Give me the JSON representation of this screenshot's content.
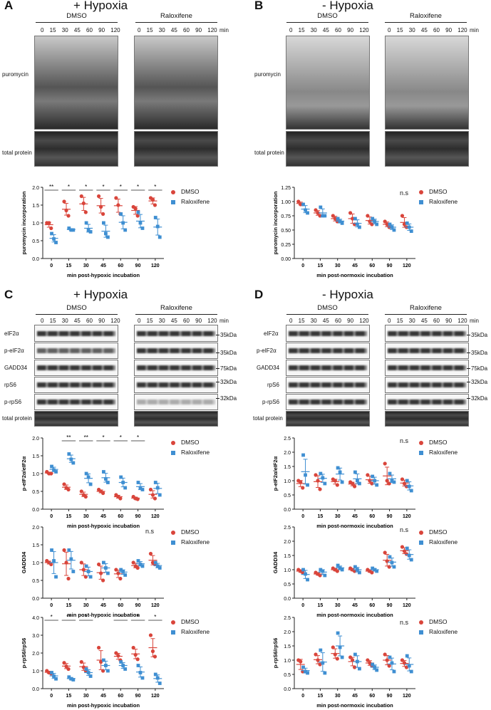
{
  "panels": {
    "A": {
      "letter": "A",
      "title": "+ Hypoxia"
    },
    "B": {
      "letter": "B",
      "title": "- Hypoxia"
    },
    "C": {
      "letter": "C",
      "title": "+ Hypoxia"
    },
    "D": {
      "letter": "D",
      "title": "- Hypoxia"
    }
  },
  "groups": {
    "dmso": "DMSO",
    "ralox": "Raloxifene"
  },
  "timepoints": "0 15 30 45 60 90 120",
  "min_label": "min",
  "blot_labels": {
    "puromycin": "puromycin",
    "total_protein": "total protein",
    "eif2a": "eIF2α",
    "peif2a": "p-eIF2α",
    "gadd34": "GADD34",
    "rps6": "rpS6",
    "prps6": "p-rpS6"
  },
  "kda": {
    "k35a": "35kDa",
    "k35b": "35kDa",
    "k75": "75kDa",
    "k32a": "32kDa",
    "k32b": "32kDa"
  },
  "legend": {
    "dmso": "DMSO",
    "ralox": "Raloxifene"
  },
  "ns": "n.s",
  "chart_data": [
    {
      "type": "scatter",
      "id": "A",
      "ylabel": "puromycin incorporation",
      "xlabel": "min post-hypoxic incubation",
      "categories": [
        "0",
        "15",
        "30",
        "45",
        "60",
        "90",
        "120"
      ],
      "ylim": [
        0,
        2.0
      ],
      "yticks": [
        "0.0",
        "0.5",
        "1.0",
        "1.5",
        "2.0"
      ],
      "yticks_num": [
        0,
        0.5,
        1.0,
        1.5,
        2.0
      ],
      "sig": [
        "**",
        "*",
        "*",
        "*",
        "*",
        "*",
        "*"
      ],
      "series": [
        {
          "name": "DMSO",
          "points": [
            [
              1.0,
              1.0,
              0.85
            ],
            [
              1.6,
              1.35,
              1.2
            ],
            [
              1.75,
              1.55,
              1.3
            ],
            [
              1.75,
              1.45,
              1.25
            ],
            [
              1.7,
              1.5,
              1.25
            ],
            [
              1.45,
              1.4,
              1.2
            ],
            [
              1.7,
              1.65,
              1.5
            ]
          ]
        },
        {
          "name": "Raloxifene",
          "points": [
            [
              0.7,
              0.55,
              0.45
            ],
            [
              0.85,
              0.8,
              0.8
            ],
            [
              1.0,
              0.8,
              0.75
            ],
            [
              1.0,
              0.7,
              0.6
            ],
            [
              1.25,
              1.0,
              0.8
            ],
            [
              1.3,
              1.0,
              0.85
            ],
            [
              1.15,
              0.9,
              0.6
            ]
          ]
        }
      ]
    },
    {
      "type": "scatter",
      "id": "B",
      "ylabel": "puromycin incorporation",
      "xlabel": "min post-normoxic incubation",
      "categories": [
        "0",
        "15",
        "30",
        "45",
        "60",
        "90",
        "120"
      ],
      "ylim": [
        0,
        1.25
      ],
      "yticks": [
        "0.00",
        "0.25",
        "0.50",
        "0.75",
        "1.00",
        "1.25"
      ],
      "yticks_num": [
        0,
        0.25,
        0.5,
        0.75,
        1.0,
        1.25
      ],
      "sig": [],
      "series": [
        {
          "name": "DMSO",
          "points": [
            [
              1.0,
              0.95,
              0.95
            ],
            [
              0.85,
              0.8,
              0.75
            ],
            [
              0.75,
              0.7,
              0.65
            ],
            [
              0.8,
              0.7,
              0.6
            ],
            [
              0.75,
              0.65,
              0.6
            ],
            [
              0.65,
              0.6,
              0.55
            ],
            [
              0.75,
              0.6,
              0.55
            ]
          ]
        },
        {
          "name": "Raloxifene",
          "points": [
            [
              0.95,
              0.85,
              0.8
            ],
            [
              0.9,
              0.75,
              0.75
            ],
            [
              0.7,
              0.65,
              0.62
            ],
            [
              0.7,
              0.6,
              0.55
            ],
            [
              0.7,
              0.65,
              0.6
            ],
            [
              0.6,
              0.55,
              0.5
            ],
            [
              0.62,
              0.55,
              0.48
            ]
          ]
        }
      ]
    },
    {
      "type": "scatter",
      "id": "C1",
      "ylabel": "p-eIF2α/eIF2α",
      "xlabel": "min post-hypoxic incubation",
      "categories": [
        "0",
        "15",
        "30",
        "45",
        "60",
        "90",
        "120"
      ],
      "ylim": [
        0,
        2.0
      ],
      "yticks": [
        "0.0",
        "0.5",
        "1.0",
        "1.5",
        "2.0"
      ],
      "yticks_num": [
        0,
        0.5,
        1.0,
        1.5,
        2.0
      ],
      "sig": [
        "",
        "**",
        "**",
        "*",
        "*",
        "*",
        ""
      ],
      "series": [
        {
          "name": "DMSO",
          "points": [
            [
              1.05,
              1.0,
              1.0
            ],
            [
              0.7,
              0.6,
              0.55
            ],
            [
              0.5,
              0.4,
              0.35
            ],
            [
              0.55,
              0.5,
              0.45
            ],
            [
              0.4,
              0.35,
              0.3
            ],
            [
              0.35,
              0.3,
              0.28
            ],
            [
              0.55,
              0.4,
              0.3
            ]
          ]
        },
        {
          "name": "Raloxifene",
          "points": [
            [
              1.2,
              1.1,
              1.05
            ],
            [
              1.55,
              1.4,
              1.3
            ],
            [
              1.0,
              0.9,
              0.7
            ],
            [
              1.05,
              0.85,
              0.75
            ],
            [
              0.9,
              0.75,
              0.6
            ],
            [
              0.75,
              0.6,
              0.55
            ],
            [
              0.75,
              0.6,
              0.4
            ]
          ]
        }
      ]
    },
    {
      "type": "scatter",
      "id": "D1",
      "ylabel": "p-eIF2α/eIF2α",
      "xlabel": "min post-normoxic incubation",
      "categories": [
        "0",
        "15",
        "30",
        "45",
        "60",
        "90",
        "120"
      ],
      "ylim": [
        0,
        2.5
      ],
      "yticks": [
        "0.0",
        "0.5",
        "1.0",
        "1.5",
        "2.0",
        "2.5"
      ],
      "yticks_num": [
        0,
        0.5,
        1.0,
        1.5,
        2.0,
        2.5
      ],
      "sig": [],
      "series": [
        {
          "name": "DMSO",
          "points": [
            [
              1.0,
              0.95,
              0.75
            ],
            [
              1.2,
              1.0,
              0.7
            ],
            [
              1.05,
              1.0,
              0.85
            ],
            [
              0.95,
              0.9,
              0.8
            ],
            [
              1.2,
              1.0,
              0.9
            ],
            [
              1.6,
              1.0,
              0.9
            ],
            [
              1.05,
              0.9,
              0.8
            ]
          ]
        },
        {
          "name": "Raloxifene",
          "points": [
            [
              1.9,
              1.2,
              0.85
            ],
            [
              1.25,
              1.1,
              0.9
            ],
            [
              1.45,
              1.3,
              0.95
            ],
            [
              1.3,
              1.0,
              0.9
            ],
            [
              1.15,
              1.0,
              0.85
            ],
            [
              1.25,
              1.0,
              0.95
            ],
            [
              1.0,
              0.8,
              0.65
            ]
          ]
        }
      ]
    },
    {
      "type": "scatter",
      "id": "C2",
      "ylabel": "GADD34",
      "xlabel": "min post-hypoxic incubation",
      "categories": [
        "0",
        "15",
        "30",
        "45",
        "60",
        "90",
        "120"
      ],
      "ylim": [
        0,
        2.0
      ],
      "yticks": [
        "0.0",
        "0.5",
        "1.0",
        "1.5",
        "2.0"
      ],
      "yticks_num": [
        0,
        0.5,
        1.0,
        1.5,
        2.0
      ],
      "sig": [],
      "series": [
        {
          "name": "DMSO",
          "points": [
            [
              1.05,
              1.0,
              0.95
            ],
            [
              1.35,
              1.0,
              0.55
            ],
            [
              1.0,
              0.8,
              0.6
            ],
            [
              0.95,
              0.7,
              0.5
            ],
            [
              0.8,
              0.7,
              0.55
            ],
            [
              1.0,
              0.9,
              0.85
            ],
            [
              1.25,
              1.0,
              0.95
            ]
          ]
        },
        {
          "name": "Raloxifene",
          "points": [
            [
              1.35,
              1.05,
              0.6
            ],
            [
              1.35,
              1.1,
              0.75
            ],
            [
              0.9,
              0.75,
              0.6
            ],
            [
              1.0,
              0.85,
              0.7
            ],
            [
              0.8,
              0.75,
              0.65
            ],
            [
              1.05,
              0.95,
              0.9
            ],
            [
              1.0,
              0.9,
              0.85
            ]
          ]
        }
      ]
    },
    {
      "type": "scatter",
      "id": "D2",
      "ylabel": "GADD34",
      "xlabel": "min post-normoxic incubation",
      "categories": [
        "0",
        "15",
        "30",
        "45",
        "60",
        "90",
        "120"
      ],
      "ylim": [
        0,
        2.5
      ],
      "yticks": [
        "0.0",
        "0.5",
        "1.0",
        "1.5",
        "2.0",
        "2.5"
      ],
      "yticks_num": [
        0,
        0.5,
        1.0,
        1.5,
        2.0,
        2.5
      ],
      "sig": [],
      "series": [
        {
          "name": "DMSO",
          "points": [
            [
              1.0,
              0.95,
              0.9
            ],
            [
              0.9,
              0.85,
              0.8
            ],
            [
              1.05,
              1.0,
              0.95
            ],
            [
              1.05,
              1.0,
              0.95
            ],
            [
              1.0,
              0.95,
              0.9
            ],
            [
              1.6,
              1.3,
              1.1
            ],
            [
              1.8,
              1.65,
              1.55
            ]
          ]
        },
        {
          "name": "Raloxifene",
          "points": [
            [
              1.0,
              0.85,
              0.65
            ],
            [
              1.0,
              0.95,
              0.8
            ],
            [
              1.15,
              1.05,
              1.0
            ],
            [
              1.1,
              1.0,
              0.9
            ],
            [
              1.05,
              1.0,
              0.95
            ],
            [
              1.45,
              1.25,
              1.1
            ],
            [
              1.75,
              1.5,
              1.35
            ]
          ]
        }
      ]
    },
    {
      "type": "scatter",
      "id": "C3",
      "ylabel": "p-rpS6/rpS6",
      "xlabel": "min post-hypoxic incubation",
      "categories": [
        "0",
        "15",
        "30",
        "45",
        "60",
        "90",
        "120"
      ],
      "ylim": [
        0,
        4.0
      ],
      "yticks": [
        "0.0",
        "1.0",
        "2.0",
        "3.0",
        "4.0"
      ],
      "yticks_num": [
        0,
        1.0,
        2.0,
        3.0,
        4.0
      ],
      "sig": [
        "*",
        "**",
        "*",
        "",
        "*",
        "*",
        "*"
      ],
      "series": [
        {
          "name": "DMSO",
          "points": [
            [
              1.0,
              0.9,
              0.85
            ],
            [
              1.45,
              1.25,
              1.1
            ],
            [
              1.5,
              1.2,
              1.0
            ],
            [
              2.3,
              1.5,
              1.0
            ],
            [
              2.0,
              1.85,
              1.6
            ],
            [
              2.3,
              1.9,
              1.65
            ],
            [
              3.0,
              2.1,
              1.8
            ]
          ]
        },
        {
          "name": "Raloxifene",
          "points": [
            [
              0.9,
              0.7,
              0.55
            ],
            [
              0.65,
              0.55,
              0.5
            ],
            [
              1.1,
              0.9,
              0.7
            ],
            [
              1.6,
              1.3,
              1.0
            ],
            [
              1.5,
              1.3,
              1.1
            ],
            [
              1.3,
              0.9,
              0.6
            ],
            [
              0.8,
              0.6,
              0.3
            ]
          ]
        }
      ]
    },
    {
      "type": "scatter",
      "id": "D3",
      "ylabel": "p-rpS6/rpS6",
      "xlabel": "min post-normoxic incubation",
      "categories": [
        "0",
        "15",
        "30",
        "45",
        "60",
        "90",
        "120"
      ],
      "ylim": [
        0,
        2.5
      ],
      "yticks": [
        "0.0",
        "0.5",
        "1.0",
        "1.5",
        "2.0",
        "2.5"
      ],
      "yticks_num": [
        0,
        0.5,
        1.0,
        1.5,
        2.0,
        2.5
      ],
      "sig": [],
      "series": [
        {
          "name": "DMSO",
          "points": [
            [
              1.0,
              0.95,
              0.6
            ],
            [
              1.2,
              1.0,
              0.85
            ],
            [
              1.45,
              1.2,
              1.05
            ],
            [
              1.1,
              1.0,
              0.75
            ],
            [
              1.0,
              0.9,
              0.8
            ],
            [
              1.2,
              1.0,
              0.8
            ],
            [
              1.0,
              0.9,
              0.75
            ]
          ]
        },
        {
          "name": "Raloxifene",
          "points": [
            [
              0.75,
              0.6,
              0.55
            ],
            [
              1.35,
              0.9,
              0.55
            ],
            [
              1.95,
              1.45,
              1.1
            ],
            [
              1.2,
              0.95,
              0.7
            ],
            [
              0.85,
              0.75,
              0.65
            ],
            [
              1.1,
              0.9,
              0.6
            ],
            [
              1.15,
              0.8,
              0.6
            ]
          ]
        }
      ]
    }
  ]
}
